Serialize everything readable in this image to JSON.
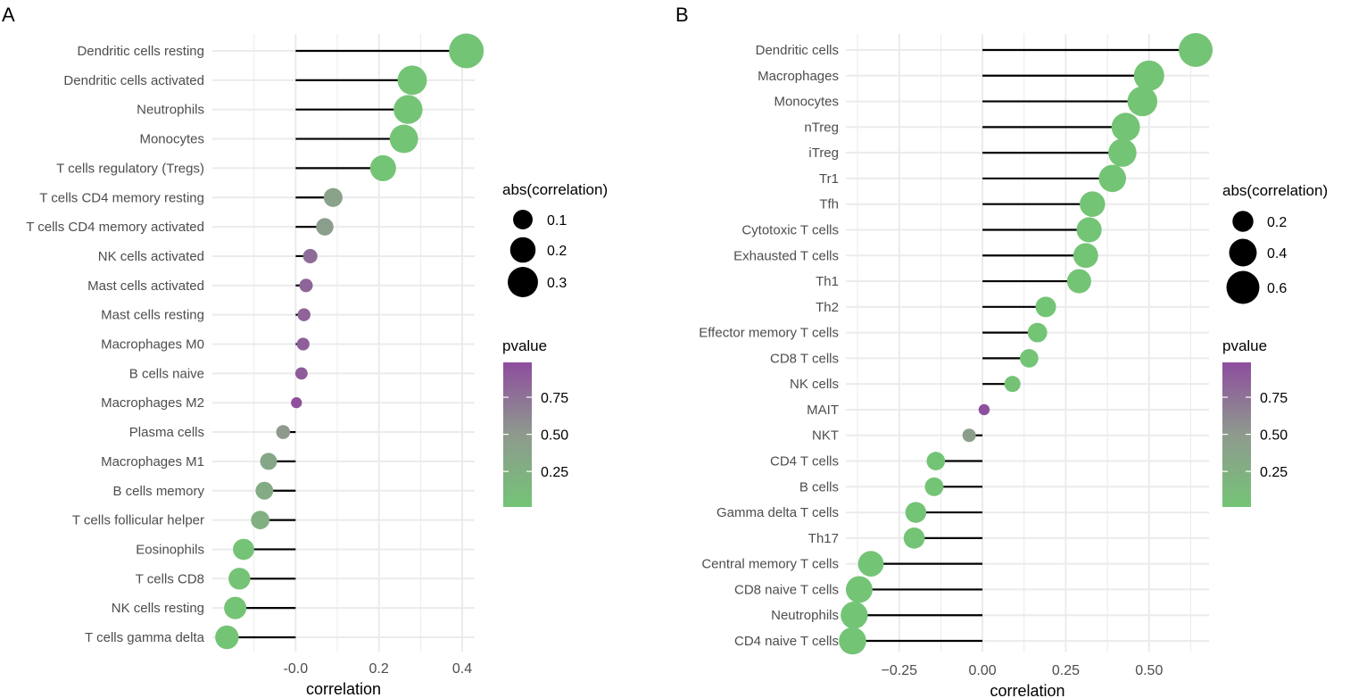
{
  "colors": {
    "low_p": "#74C476",
    "mid_p": "#8E9A8E",
    "high_p": "#8E4D9E",
    "grid": "#EBEBEB",
    "stem": "#000000"
  },
  "chart_data": [
    {
      "panel": "A",
      "type": "lollipop",
      "xlabel": "correlation",
      "xlim": [
        -0.2,
        0.43
      ],
      "xticks": [
        -0.0,
        0.2,
        0.4
      ],
      "xtick_labels": [
        "-0.0",
        "0.2",
        "0.4"
      ],
      "grid": true,
      "categories": [
        "Dendritic cells resting",
        "Dendritic cells activated",
        "Neutrophils",
        "Monocytes",
        "T cells regulatory (Tregs)",
        "T cells CD4 memory resting",
        "T cells CD4 memory activated",
        "NK cells activated",
        "Mast cells activated",
        "Mast cells resting",
        "Macrophages M0",
        "B cells naive",
        "Macrophages M2",
        "Plasma cells",
        "Macrophages M1",
        "B cells memory",
        "T cells follicular helper",
        "Eosinophils",
        "T cells CD8",
        "NK cells resting",
        "T cells gamma delta"
      ],
      "values": [
        0.41,
        0.28,
        0.27,
        0.26,
        0.21,
        0.09,
        0.07,
        0.035,
        0.025,
        0.02,
        0.018,
        0.014,
        0.002,
        -0.03,
        -0.065,
        -0.075,
        -0.085,
        -0.125,
        -0.135,
        -0.145,
        -0.165
      ],
      "pvalues": [
        0.0,
        0.0,
        0.0,
        0.0,
        0.0,
        0.4,
        0.45,
        0.8,
        0.85,
        0.85,
        0.88,
        0.9,
        0.98,
        0.5,
        0.35,
        0.3,
        0.25,
        0.01,
        0.01,
        0.005,
        0.002
      ],
      "size_legend": {
        "title": "abs(correlation)",
        "values": [
          0.1,
          0.2,
          0.3
        ],
        "labels": [
          "0.1",
          "0.2",
          "0.3"
        ]
      },
      "color_legend": {
        "title": "pvalue",
        "ticks": [
          0.75,
          0.5,
          0.25
        ],
        "labels": [
          "0.75",
          "0.50",
          "0.25"
        ]
      }
    },
    {
      "panel": "B",
      "type": "lollipop",
      "xlabel": "correlation",
      "xlim": [
        -0.41,
        0.68
      ],
      "xticks": [
        -0.25,
        0.0,
        0.25,
        0.5
      ],
      "xtick_labels": [
        "−0.25",
        "0.00",
        "0.25",
        "0.50"
      ],
      "grid": true,
      "categories": [
        "Dendritic cells",
        "Macrophages",
        "Monocytes",
        "nTreg",
        "iTreg",
        "Tr1",
        "Tfh",
        "Cytotoxic T cells",
        "Exhausted T cells",
        "Th1",
        "Th2",
        "Effector memory T cells",
        "CD8 T cells",
        "NK cells",
        "MAIT",
        "NKT",
        "CD4 T cells",
        "B cells",
        "Gamma delta T cells",
        "Th17",
        "Central memory T cells",
        "CD8 naive T cells",
        "Neutrophils",
        "CD4 naive T cells"
      ],
      "values": [
        0.64,
        0.5,
        0.48,
        0.43,
        0.42,
        0.39,
        0.33,
        0.32,
        0.31,
        0.29,
        0.19,
        0.165,
        0.14,
        0.09,
        0.005,
        -0.04,
        -0.14,
        -0.145,
        -0.2,
        -0.205,
        -0.335,
        -0.37,
        -0.385,
        -0.39
      ],
      "pvalues": [
        0.0,
        0.0,
        0.0,
        0.0,
        0.0,
        0.0,
        0.0,
        0.0,
        0.0,
        0.0,
        0.0,
        0.0,
        0.0,
        0.02,
        0.98,
        0.45,
        0.0,
        0.0,
        0.0,
        0.0,
        0.0,
        0.0,
        0.0,
        0.0
      ],
      "size_legend": {
        "title": "abs(correlation)",
        "values": [
          0.2,
          0.4,
          0.6
        ],
        "labels": [
          "0.2",
          "0.4",
          "0.6"
        ]
      },
      "color_legend": {
        "title": "pvalue",
        "ticks": [
          0.75,
          0.5,
          0.25
        ],
        "labels": [
          "0.75",
          "0.50",
          "0.25"
        ]
      }
    }
  ]
}
